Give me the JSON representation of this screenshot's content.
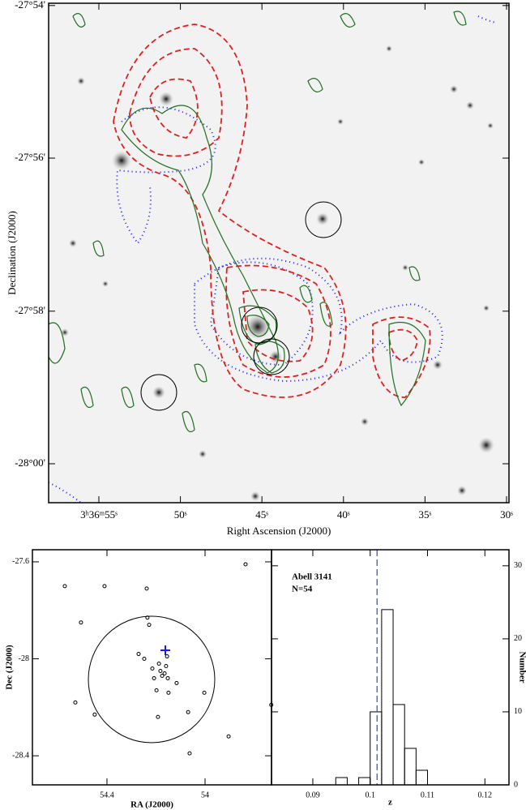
{
  "chart_data": [
    {
      "type": "image",
      "x_label": "Right Ascension (J2000)",
      "y_label": "Declination (J2000)",
      "xlim": [
        58.08,
        29.85
      ],
      "ylim": [
        -28.0085,
        -27.8995
      ],
      "xticks": [
        {
          "value": 55,
          "label": "3ʰ36ᵐ55ˢ"
        },
        {
          "value": 50,
          "label": "50ˢ"
        },
        {
          "value": 45,
          "label": "45ˢ"
        },
        {
          "value": 40,
          "label": "40ˢ"
        },
        {
          "value": 35,
          "label": "35ˢ"
        },
        {
          "value": 30,
          "label": "30ˢ"
        }
      ],
      "yticks": [
        {
          "value": -27.9,
          "label": "-27°54'"
        },
        {
          "value": -27.9333,
          "label": "-27°56'"
        },
        {
          "value": -27.9667,
          "label": "-27°58'"
        },
        {
          "value": -28.0,
          "label": "-28°00'"
        }
      ]
    },
    {
      "type": "scatter",
      "x_label": "RA (J2000)",
      "y_label": "Dec (J2000)",
      "color": "#000000",
      "xlim": [
        54.704,
        53.729
      ],
      "ylim": [
        -28.52,
        -27.55
      ],
      "xticks": [
        54.4,
        54
      ],
      "yticks": [
        -27.6,
        -28,
        -28.4
      ],
      "x": [
        53.835,
        54.572,
        54.41,
        54.238,
        54.506,
        54.235,
        54.228,
        54.271,
        54.248,
        54.155,
        54.188,
        54.159,
        54.215,
        54.182,
        54.165,
        54.175,
        54.152,
        54.208,
        54.116,
        54.198,
        54.149,
        54.003,
        54.529,
        54.45,
        54.069,
        54.192,
        53.904,
        54.063,
        53.73
      ],
      "values": [
        -27.61,
        -27.7,
        -27.7,
        -27.71,
        -27.85,
        -27.83,
        -27.86,
        -27.98,
        -28.0,
        -27.99,
        -28.02,
        -28.03,
        -28.04,
        -28.05,
        -28.06,
        -28.07,
        -28.08,
        -28.08,
        -28.1,
        -28.13,
        -28.14,
        -28.14,
        -28.18,
        -28.23,
        -28.22,
        -28.24,
        -28.32,
        -28.39,
        -28.19
      ]
    },
    {
      "type": "histogram",
      "x_label": "z",
      "y_label": "Number",
      "annotations": [
        "Abell 3141",
        "N=54"
      ],
      "color": "#000000",
      "reference_line": 0.1012,
      "reference_color": "#3344cc",
      "xlim": [
        0.0828,
        0.1242
      ],
      "ylim": [
        0,
        32.2
      ],
      "xticks": [
        0.09,
        0.1,
        0.11,
        0.12
      ],
      "yticks": [
        0,
        10,
        20,
        30
      ],
      "bins": [
        0.094,
        0.096,
        0.098,
        0.1,
        0.102,
        0.104,
        0.106,
        0.108,
        0.11
      ],
      "values": [
        1,
        0,
        1,
        10,
        24,
        11,
        5,
        2
      ]
    }
  ]
}
